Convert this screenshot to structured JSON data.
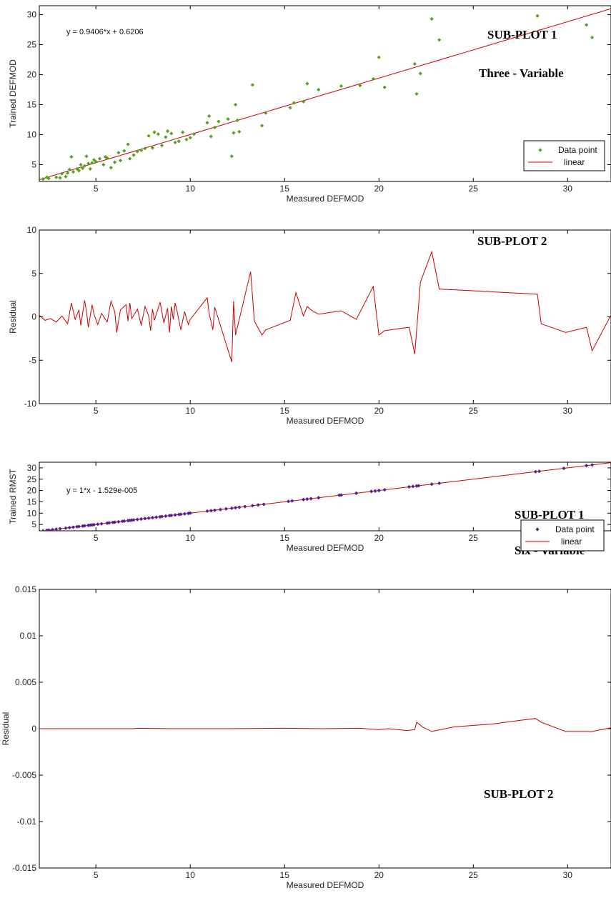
{
  "chart_data": [
    {
      "type": "scatter",
      "xlabel": "Measured DEFMOD",
      "ylabel": "Trained DEFMOD",
      "xlim": [
        2,
        32.3
      ],
      "ylim": [
        2.2,
        31.5
      ],
      "xticks": [
        "5",
        "10",
        "15",
        "20",
        "25",
        "30"
      ],
      "yticks": [
        "5",
        "10",
        "15",
        "20",
        "25",
        "30"
      ],
      "annotations": [
        "SUB-PLOT 1",
        "Three - Variable"
      ],
      "equation": "y = 0.9406*x + 0.6206",
      "legend": {
        "placement": "bottom-right",
        "entries": [
          "Data point",
          "linear"
        ]
      },
      "fit": {
        "slope": 0.9406,
        "intercept": 0.6206
      },
      "colors": {
        "points": "#55a01c",
        "line": "#cc0000"
      },
      "series": [
        {
          "name": "Data point",
          "marker": "diamond",
          "x": [
            2.2,
            2.4,
            2.5,
            2.9,
            3.1,
            3.2,
            3.4,
            3.5,
            3.6,
            3.7,
            3.8,
            4.0,
            4.1,
            4.2,
            4.3,
            4.4,
            4.5,
            4.6,
            4.7,
            4.8,
            4.9,
            5.0,
            5.2,
            5.4,
            5.5,
            5.6,
            5.8,
            6.0,
            6.2,
            6.3,
            6.5,
            6.7,
            6.8,
            7.0,
            7.2,
            7.4,
            7.6,
            7.8,
            8.0,
            8.1,
            8.3,
            8.5,
            8.7,
            8.8,
            9.0,
            9.2,
            9.4,
            9.6,
            9.8,
            10.0,
            10.2,
            10.9,
            11.0,
            11.1,
            11.3,
            11.5,
            12.0,
            12.2,
            12.3,
            12.4,
            12.5,
            12.6,
            13.3,
            13.8,
            14.0,
            15.3,
            15.5,
            16.0,
            16.2,
            16.8,
            18.0,
            19.0,
            19.7,
            20.0,
            20.3,
            21.9,
            22.0,
            22.2,
            22.8,
            23.2,
            28.4,
            31.0,
            31.3
          ],
          "y": [
            2.6,
            2.9,
            2.7,
            2.9,
            2.8,
            3.5,
            3.0,
            3.6,
            4.2,
            6.3,
            3.8,
            4.3,
            4.0,
            5.0,
            4.4,
            4.8,
            6.4,
            5.2,
            4.3,
            5.3,
            5.8,
            5.5,
            6.0,
            5.0,
            6.3,
            6.1,
            4.5,
            5.4,
            7.0,
            5.7,
            7.3,
            8.4,
            6.0,
            6.6,
            7.2,
            7.4,
            7.7,
            9.8,
            7.8,
            10.4,
            10.1,
            8.2,
            9.6,
            10.6,
            10.2,
            8.7,
            8.9,
            10.4,
            9.2,
            9.5,
            10.1,
            12.0,
            13.1,
            9.7,
            11.2,
            12.2,
            12.6,
            6.4,
            10.3,
            15.0,
            12.4,
            10.5,
            18.3,
            11.5,
            13.6,
            14.5,
            15.3,
            15.5,
            18.5,
            17.5,
            18.1,
            18.2,
            19.3,
            22.9,
            17.9,
            21.8,
            16.8,
            20.2,
            29.3,
            25.8,
            29.8,
            28.3,
            26.2
          ]
        }
      ]
    },
    {
      "type": "line",
      "xlabel": "Measured DEFMOD",
      "ylabel": "Residual",
      "xlim": [
        2,
        32.3
      ],
      "ylim": [
        -10,
        10
      ],
      "xticks": [
        "5",
        "10",
        "15",
        "20",
        "25",
        "30"
      ],
      "yticks": [
        "-10",
        "-5",
        "0",
        "5",
        "10"
      ],
      "annotations": [
        "SUB-PLOT 2"
      ],
      "colors": {
        "line": "#cc0000"
      },
      "series": [
        {
          "x": [
            2.0,
            2.3,
            2.6,
            2.9,
            3.2,
            3.5,
            3.7,
            3.9,
            4.1,
            4.2,
            4.4,
            4.5,
            4.6,
            4.8,
            4.9,
            5.1,
            5.3,
            5.6,
            5.8,
            6.0,
            6.1,
            6.3,
            6.6,
            6.7,
            6.8,
            6.9,
            7.2,
            7.4,
            7.6,
            7.8,
            7.9,
            8.0,
            8.1,
            8.4,
            8.6,
            8.8,
            8.9,
            9.0,
            9.1,
            9.2,
            9.3,
            9.5,
            9.7,
            9.9,
            10.0,
            10.9,
            11.0,
            11.2,
            11.3,
            12.2,
            12.3,
            12.4,
            13.2,
            13.4,
            13.8,
            14.0,
            15.3,
            15.6,
            16.0,
            16.2,
            16.4,
            16.8,
            18.0,
            18.8,
            19.7,
            20.0,
            20.3,
            21.6,
            21.9,
            22.2,
            22.8,
            23.2,
            28.4,
            28.6,
            29.9,
            31.0,
            31.3,
            32.3
          ],
          "y": [
            0.2,
            -0.4,
            -0.2,
            -0.6,
            0.1,
            -0.8,
            1.6,
            -0.3,
            0.8,
            -1.0,
            1.9,
            0.6,
            -1.2,
            1.4,
            0.3,
            -0.9,
            0.4,
            -0.6,
            1.8,
            0.6,
            -1.8,
            0.8,
            1.4,
            -0.5,
            1.6,
            -0.2,
            0.9,
            -1.0,
            1.2,
            0.1,
            -1.6,
            0.9,
            -0.4,
            1.7,
            -0.7,
            1.0,
            -1.8,
            1.2,
            -0.3,
            1.6,
            0.7,
            -1.5,
            0.6,
            -0.9,
            -0.3,
            2.2,
            0.4,
            -1.5,
            1.1,
            -5.2,
            1.8,
            -2.1,
            5.2,
            -0.5,
            -2.1,
            -1.5,
            -0.4,
            2.8,
            0.1,
            1.2,
            0.8,
            0.3,
            0.7,
            -0.3,
            3.5,
            -2.1,
            -1.6,
            -1.2,
            -4.3,
            4.0,
            7.5,
            3.2,
            2.6,
            -0.8,
            -1.8,
            -1.2,
            -3.9,
            0.2
          ]
        }
      ]
    },
    {
      "type": "scatter",
      "xlabel": "Measured DEFMOD",
      "ylabel": "Trained RMST",
      "xlim": [
        2,
        32.3
      ],
      "ylim": [
        2.2,
        32.5
      ],
      "xticks": [
        "5",
        "10",
        "15",
        "20",
        "25",
        "30"
      ],
      "yticks": [
        "5",
        "10",
        "15",
        "20",
        "25",
        "30"
      ],
      "annotations": [
        "SUB-PLOT 1",
        "Six - Variable"
      ],
      "equation": "y = 1*x - 1.529e-005",
      "legend": {
        "placement": "bottom-right",
        "entries": [
          "Data point",
          "linear"
        ]
      },
      "fit": {
        "slope": 1,
        "intercept": -1.529e-05
      },
      "colors": {
        "points": "#5a1a8c",
        "line": "#cc0000"
      },
      "series": [
        {
          "name": "Data point",
          "marker": "diamond",
          "x": [
            2.2,
            2.4,
            2.5,
            2.7,
            2.9,
            3.1,
            3.4,
            3.6,
            3.8,
            4.0,
            4.1,
            4.3,
            4.4,
            4.6,
            4.7,
            4.8,
            4.9,
            5.1,
            5.3,
            5.6,
            5.7,
            5.9,
            6.0,
            6.2,
            6.4,
            6.5,
            6.7,
            6.8,
            6.9,
            7.0,
            7.2,
            7.4,
            7.6,
            7.8,
            8.0,
            8.2,
            8.4,
            8.5,
            8.7,
            8.9,
            9.0,
            9.2,
            9.4,
            9.5,
            9.7,
            9.9,
            10.0,
            10.9,
            11.1,
            11.3,
            11.6,
            11.9,
            12.2,
            12.4,
            12.6,
            12.9,
            13.3,
            13.6,
            13.9,
            15.2,
            15.4,
            16.0,
            16.2,
            16.4,
            16.8,
            17.9,
            18.0,
            18.8,
            19.6,
            19.8,
            20.0,
            20.3,
            21.6,
            21.8,
            22.0,
            22.1,
            22.8,
            23.2,
            28.3,
            28.5,
            29.8,
            31.0,
            31.3
          ],
          "y": [
            2.2,
            2.4,
            2.5,
            2.7,
            2.9,
            3.1,
            3.4,
            3.6,
            3.8,
            4.0,
            4.1,
            4.3,
            4.4,
            4.6,
            4.7,
            4.8,
            4.9,
            5.1,
            5.3,
            5.6,
            5.7,
            5.9,
            6.0,
            6.2,
            6.4,
            6.5,
            6.7,
            6.8,
            6.9,
            7.0,
            7.2,
            7.4,
            7.6,
            7.8,
            8.0,
            8.2,
            8.4,
            8.5,
            8.7,
            8.9,
            9.0,
            9.2,
            9.4,
            9.5,
            9.7,
            9.9,
            10.0,
            10.9,
            11.1,
            11.3,
            11.6,
            11.9,
            12.2,
            12.4,
            12.6,
            12.9,
            13.3,
            13.6,
            13.9,
            15.2,
            15.4,
            16.0,
            16.2,
            16.4,
            16.8,
            17.9,
            18.0,
            18.8,
            19.6,
            19.8,
            20.0,
            20.3,
            21.6,
            21.8,
            22.0,
            22.1,
            22.8,
            23.2,
            28.3,
            28.5,
            29.8,
            31.0,
            31.3
          ]
        }
      ]
    },
    {
      "type": "line",
      "xlabel": "Measured DEFMOD",
      "ylabel": "Residual",
      "xlim": [
        2,
        32.3
      ],
      "ylim": [
        -0.015,
        0.015
      ],
      "xticks": [
        "5",
        "10",
        "15",
        "20",
        "25",
        "30"
      ],
      "yticks": [
        "-0.015",
        "-0.01",
        "-0.005",
        "0",
        "0.005",
        "0.01",
        "0.015"
      ],
      "annotations": [
        "SUB-PLOT 2"
      ],
      "colors": {
        "line": "#cc0000"
      },
      "series": [
        {
          "x": [
            2.0,
            5.0,
            7.0,
            7.2,
            9.0,
            12.0,
            15.0,
            17.0,
            19.0,
            20.0,
            20.5,
            21.5,
            21.9,
            22.0,
            22.3,
            22.8,
            24.0,
            26.0,
            27.5,
            28.3,
            28.6,
            29.9,
            31.3,
            32.3
          ],
          "y": [
            0.0,
            0.0,
            0.0,
            5e-05,
            0.0,
            0.0,
            5e-05,
            0.0,
            5e-05,
            -0.0001,
            0.0,
            -0.0002,
            -0.0001,
            0.0007,
            0.0002,
            -0.0003,
            0.0002,
            0.0005,
            0.0009,
            0.0011,
            0.0007,
            -0.0003,
            -0.0003,
            0.0001
          ]
        }
      ]
    }
  ]
}
